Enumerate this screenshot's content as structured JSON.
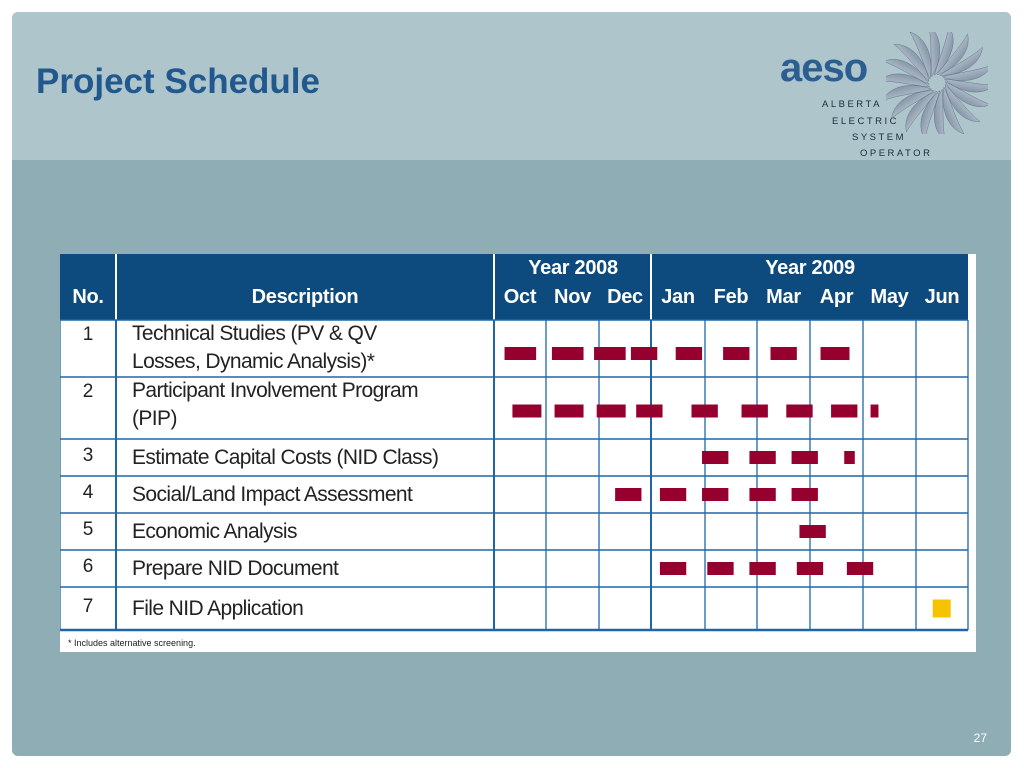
{
  "slide": {
    "title": "Project Schedule",
    "page_number": "27",
    "logo": {
      "wordmark": "aeso",
      "lines": [
        "ALBERTA",
        "ELECTRIC",
        "SYSTEM",
        "OPERATOR"
      ]
    }
  },
  "table": {
    "col_no": "No.",
    "col_description": "Description",
    "years": [
      {
        "label": "Year 2008",
        "months": 3
      },
      {
        "label": "Year 2009",
        "months": 6
      }
    ],
    "months": [
      "Oct",
      "Nov",
      "Dec",
      "Jan",
      "Feb",
      "Mar",
      "Apr",
      "May",
      "Jun"
    ],
    "rows": [
      {
        "no": "1",
        "description": [
          "Technical Studies (PV & QV",
          "Losses, Dynamic Analysis)*"
        ]
      },
      {
        "no": "2",
        "description": [
          "Participant Involvement Program",
          "(PIP)"
        ]
      },
      {
        "no": "3",
        "description": [
          "Estimate Capital Costs (NID Class)"
        ]
      },
      {
        "no": "4",
        "description": [
          "Social/Land Impact Assessment"
        ]
      },
      {
        "no": "5",
        "description": [
          "Economic Analysis"
        ]
      },
      {
        "no": "6",
        "description": [
          "Prepare NID Document"
        ]
      },
      {
        "no": "7",
        "description": [
          "File NID Application"
        ]
      }
    ],
    "footnote": "* Includes alternative screening."
  },
  "colors": {
    "header_blue": "#0d4a7e",
    "grid_blue": "#1f66a8",
    "bar": "#96002e",
    "milestone": "#f5c300"
  },
  "chart_data": {
    "type": "gantt",
    "unit": "month index (0 = Oct 2008, 9 = end of Jun 2009)",
    "tasks": [
      {
        "no": "1",
        "bars": [
          [
            0.2,
            0.8
          ],
          [
            1.1,
            1.7
          ],
          [
            1.9,
            2.5
          ],
          [
            2.6,
            3.1
          ],
          [
            3.45,
            3.95
          ],
          [
            4.35,
            4.85
          ],
          [
            5.25,
            5.75
          ],
          [
            6.2,
            6.75
          ]
        ]
      },
      {
        "no": "2",
        "bars": [
          [
            0.35,
            0.9
          ],
          [
            1.15,
            1.7
          ],
          [
            1.95,
            2.5
          ],
          [
            2.7,
            3.2
          ],
          [
            3.75,
            4.25
          ],
          [
            4.7,
            5.2
          ],
          [
            5.55,
            6.05
          ],
          [
            6.4,
            6.9
          ],
          [
            7.15,
            7.3
          ]
        ]
      },
      {
        "no": "3",
        "bars": [
          [
            3.95,
            4.45
          ],
          [
            4.85,
            5.35
          ],
          [
            5.65,
            6.15
          ],
          [
            6.65,
            6.85
          ]
        ]
      },
      {
        "no": "4",
        "bars": [
          [
            2.3,
            2.8
          ],
          [
            3.15,
            3.65
          ],
          [
            3.95,
            4.45
          ],
          [
            4.85,
            5.35
          ],
          [
            5.65,
            6.15
          ]
        ]
      },
      {
        "no": "5",
        "bars": [
          [
            5.8,
            6.3
          ]
        ]
      },
      {
        "no": "6",
        "bars": [
          [
            3.15,
            3.65
          ],
          [
            4.05,
            4.55
          ],
          [
            4.85,
            5.35
          ],
          [
            5.75,
            6.25
          ],
          [
            6.7,
            7.2
          ]
        ]
      },
      {
        "no": "7",
        "milestones": [
          8.5
        ]
      }
    ]
  }
}
